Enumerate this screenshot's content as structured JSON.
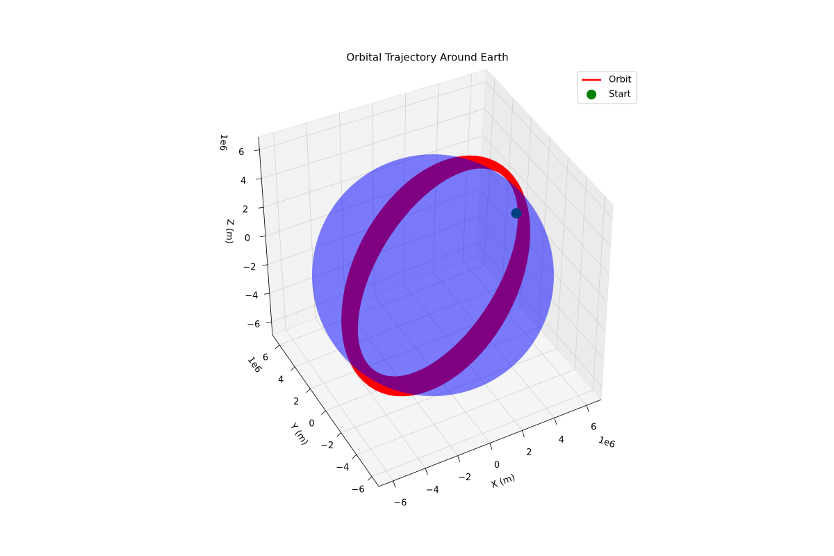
{
  "chart_data": {
    "type": "3d",
    "title": "Orbital Trajectory Around Earth",
    "xlabel": "X (m)",
    "ylabel": "Y (m)",
    "zlabel": "Z (m)",
    "offset_labels": {
      "x": "1e6",
      "y": "1e6",
      "z": "1e6"
    },
    "xlim": [
      -6.9,
      6.9
    ],
    "ylim": [
      -6.9,
      6.9
    ],
    "zlim": [
      -6.9,
      6.9
    ],
    "xticks": [
      {
        "value": -6,
        "label": "−6"
      },
      {
        "value": -4,
        "label": "−4"
      },
      {
        "value": -2,
        "label": "−2"
      },
      0,
      2,
      4,
      6
    ],
    "yticks": [
      {
        "value": -6,
        "label": "−6"
      },
      {
        "value": -4,
        "label": "−4"
      },
      {
        "value": -2,
        "label": "−2"
      },
      0,
      2,
      4,
      6
    ],
    "zticks": [
      {
        "value": -6,
        "label": "−6"
      },
      {
        "value": -4,
        "label": "−4"
      },
      {
        "value": -2,
        "label": "−2"
      },
      0,
      2,
      4,
      6
    ],
    "grid": true,
    "legend": "upper right",
    "series": [
      {
        "name": "Orbit",
        "color": "#ff0000"
      },
      {
        "name": "Start",
        "color": "#008000"
      }
    ],
    "earth_color": "#0000ff"
  }
}
